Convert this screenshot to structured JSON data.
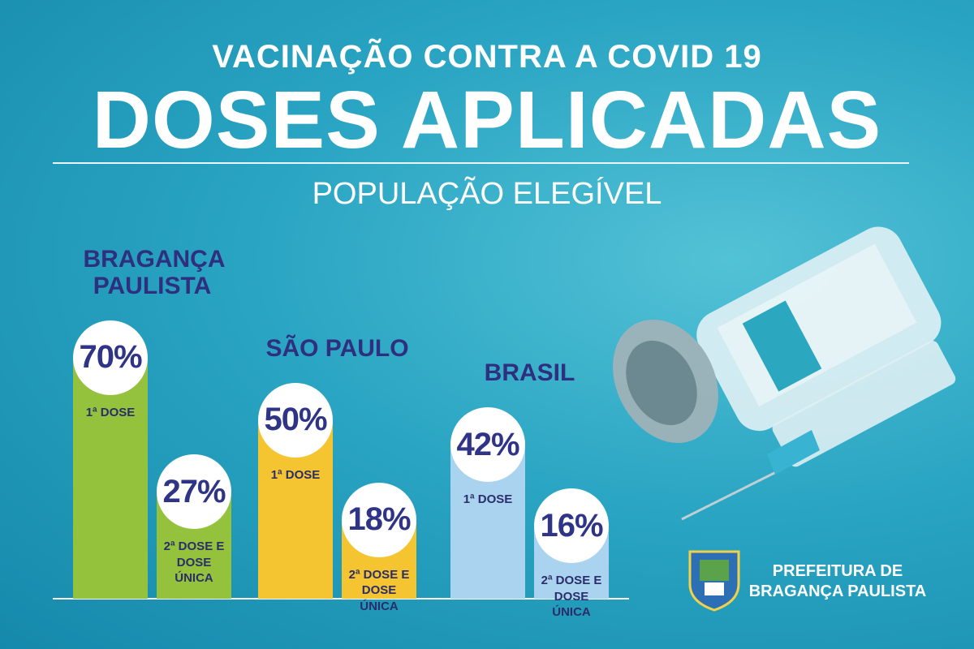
{
  "chart_data": {
    "type": "bar",
    "title": "VACINAÇÃO CONTRA A COVID 19",
    "heading": "DOSES APLICADAS",
    "subtitle": "POPULAÇÃO ELEGÍVEL",
    "categories": [
      "1ª DOSE",
      "2ª DOSE E DOSE ÚNICA"
    ],
    "series": [
      {
        "name": "BRAGANÇA PAULISTA",
        "color": "#94c23c",
        "values": [
          70,
          27
        ],
        "value_labels": [
          "70%",
          "27%"
        ]
      },
      {
        "name": "SÃO PAULO",
        "color": "#f5c431",
        "values": [
          50,
          18
        ],
        "value_labels": [
          "50%",
          "18%"
        ]
      },
      {
        "name": "BRASIL",
        "color": "#a9d3ee",
        "values": [
          42,
          16
        ],
        "value_labels": [
          "42%",
          "16%"
        ]
      }
    ]
  },
  "footer": {
    "text": "PREFEITURA DE BRAGANÇA PAULISTA"
  }
}
